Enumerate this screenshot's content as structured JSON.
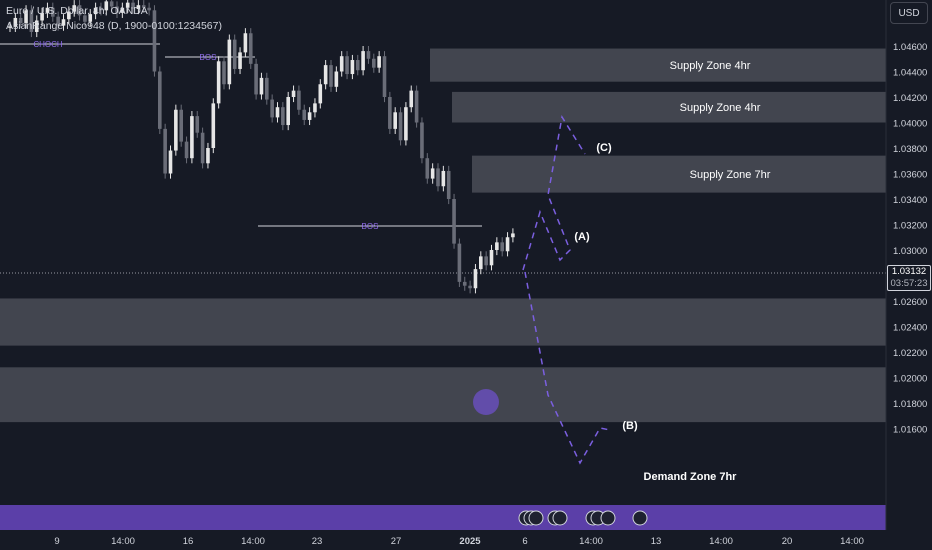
{
  "legend": {
    "line1": "Euro / U.S. Dollar, 4h, OANDA",
    "line2": "AsianRange Nico948 (D, 1900-0100:1234567)"
  },
  "currency": "USD",
  "last_price": {
    "price": "1.03132",
    "countdown": "03:57:23"
  },
  "colors": {
    "background": "#161a25",
    "zone": "#4a4d57",
    "projection": "#7b5fe0",
    "structure": "#9370f0",
    "event_bar": "#5b3fa8"
  },
  "chart_data": {
    "type": "candlestick",
    "y_axis": {
      "range": [
        1.0155,
        1.0495
      ],
      "ticks": [
        "1.04600",
        "1.04400",
        "1.04200",
        "1.04000",
        "1.03800",
        "1.03600",
        "1.03400",
        "1.03200",
        "1.03000",
        "1.02800",
        "1.02600",
        "1.02400",
        "1.02200",
        "1.02000",
        "1.01800",
        "1.01600"
      ]
    },
    "x_axis": {
      "ticks": [
        "9",
        "14:00",
        "16",
        "14:00",
        "23",
        "27",
        "2025",
        "6",
        "14:00",
        "13",
        "14:00",
        "20",
        "14:00"
      ]
    },
    "candles_close_series": [
      1.0475,
      1.0482,
      1.0478,
      1.0488,
      1.0471,
      1.048,
      1.0486,
      1.049,
      1.0483,
      1.0476,
      1.0481,
      1.0487,
      1.0492,
      1.0484,
      1.0479,
      1.0485,
      1.049,
      1.0488,
      1.0495,
      1.0491,
      1.0486,
      1.049,
      1.0494,
      1.0489,
      1.0492,
      1.049,
      1.0488,
      1.044,
      1.0395,
      1.036,
      1.0378,
      1.041,
      1.0385,
      1.0372,
      1.0405,
      1.0392,
      1.0368,
      1.038,
      1.0415,
      1.0448,
      1.043,
      1.0465,
      1.0442,
      1.0455,
      1.047,
      1.0446,
      1.0422,
      1.0435,
      1.0418,
      1.0404,
      1.0412,
      1.0398,
      1.042,
      1.0425,
      1.041,
      1.0402,
      1.0408,
      1.0415,
      1.043,
      1.0445,
      1.0428,
      1.044,
      1.0452,
      1.0438,
      1.0449,
      1.0441,
      1.0456,
      1.045,
      1.0443,
      1.0452,
      1.042,
      1.0395,
      1.0408,
      1.0386,
      1.0412,
      1.0425,
      1.04,
      1.0372,
      1.0356,
      1.0364,
      1.035,
      1.0362,
      1.034,
      1.0305,
      1.0275,
      1.0272,
      1.027,
      1.0285,
      1.0295,
      1.0288,
      1.03,
      1.0306,
      1.0299,
      1.031,
      1.0313
    ],
    "zones": [
      {
        "label": "Supply Zone 4hr",
        "top": 1.0458,
        "bottom": 1.0432
      },
      {
        "label": "Supply Zone 4hr",
        "top": 1.0424,
        "bottom": 1.04
      },
      {
        "label": "Supply Zone 7hr",
        "top": 1.0374,
        "bottom": 1.0345
      },
      {
        "label": "",
        "top": 1.0262,
        "bottom": 1.0225
      },
      {
        "label": "Demand Zone 7hr",
        "top": 1.0208,
        "bottom": 1.0165
      }
    ],
    "structure_labels": [
      "CHOCH",
      "BOS",
      "BOS"
    ],
    "wave_labels": [
      "(A)",
      "(B)",
      "(C)"
    ]
  }
}
